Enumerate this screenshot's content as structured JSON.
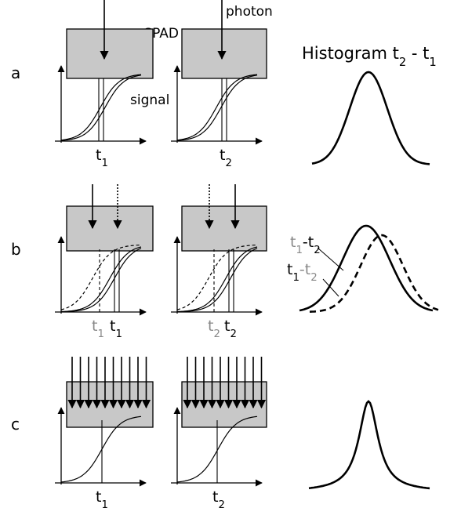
{
  "labels": {
    "spad": "SPAD",
    "photon": "photon",
    "signal": "signal"
  },
  "histogram_title": [
    "Histogram t",
    "2",
    " - t",
    "1"
  ],
  "rows": [
    {
      "label": "a",
      "left_times": [
        [
          "t",
          "1"
        ]
      ],
      "right_times": [
        [
          "t",
          "2"
        ]
      ]
    },
    {
      "label": "b",
      "left_times": [
        [
          "t",
          "1"
        ],
        [
          "t",
          "1"
        ]
      ],
      "right_times": [
        [
          "t",
          "2"
        ],
        [
          "t",
          "2"
        ]
      ],
      "histogram_labels": [
        [
          "t",
          "1",
          "-t",
          "2"
        ],
        [
          "t",
          "1",
          "-t",
          "2"
        ]
      ]
    },
    {
      "label": "c",
      "left_times": [
        [
          "t",
          "1"
        ]
      ],
      "right_times": [
        [
          "t",
          "2"
        ]
      ]
    }
  ]
}
